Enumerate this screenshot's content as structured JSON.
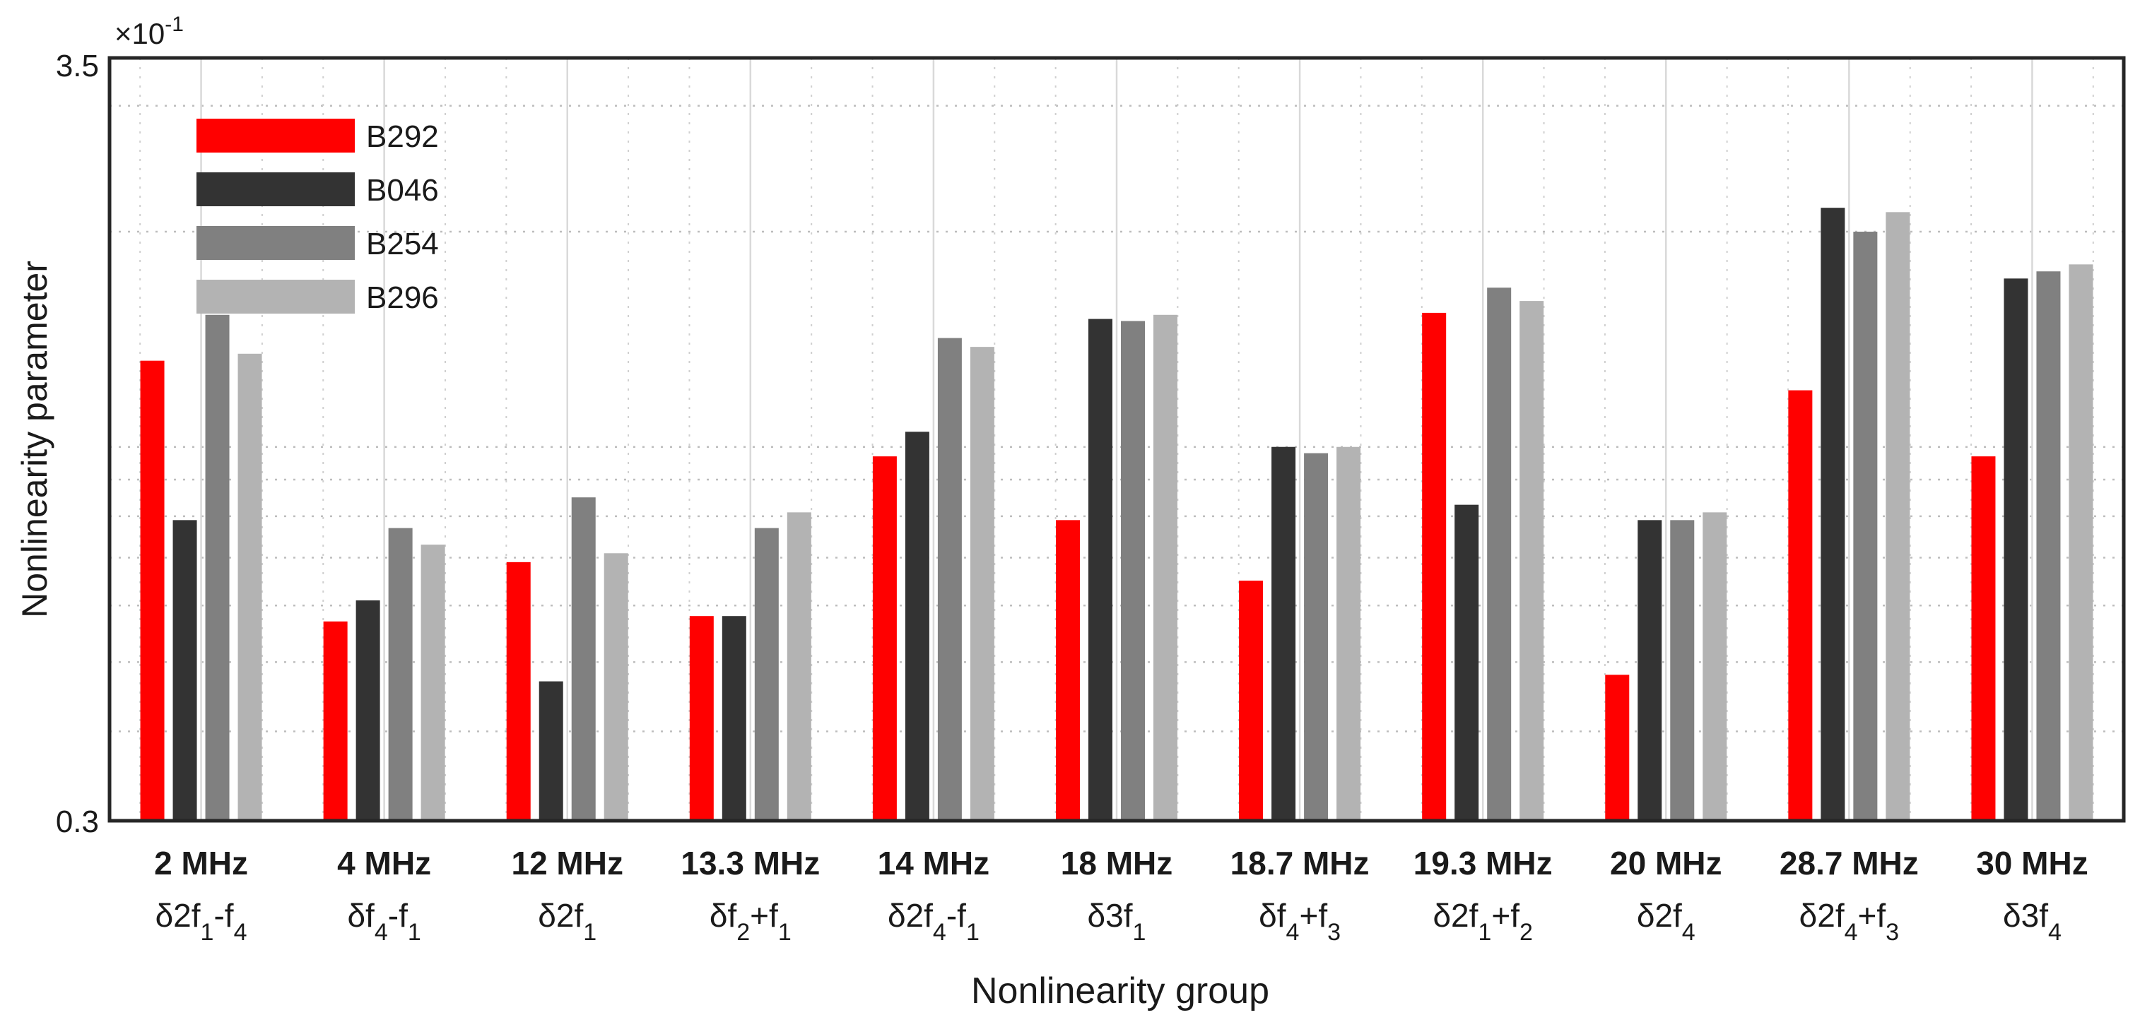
{
  "chart_data": {
    "type": "bar",
    "ylabel": "Nonlinearity parameter",
    "xlabel": "Nonlinearity group",
    "yscale": "log",
    "ylim": [
      0.3,
      3.5
    ],
    "y_ticks": [
      "0.3",
      "3.5"
    ],
    "y_exponent": "×10",
    "y_exponent_power": "-1",
    "grid": true,
    "legend_position": "top-left",
    "categories": [
      "2 MHz",
      "4 MHz",
      "12 MHz",
      "13.3 MHz",
      "14 MHz",
      "18 MHz",
      "18.7 MHz",
      "19.3 MHz",
      "20 MHz",
      "28.7 MHz",
      "30 MHz"
    ],
    "category_sublabels": [
      [
        [
          "δ2f",
          ""
        ],
        [
          "1",
          "sub"
        ],
        [
          "-f",
          ""
        ],
        [
          "4",
          "sub"
        ]
      ],
      [
        [
          "δf",
          ""
        ],
        [
          "4",
          "sub"
        ],
        [
          "-f",
          ""
        ],
        [
          "1",
          "sub"
        ]
      ],
      [
        [
          "δ2f",
          ""
        ],
        [
          "1",
          "sub"
        ]
      ],
      [
        [
          "δf",
          ""
        ],
        [
          "2",
          "sub"
        ],
        [
          "+f",
          ""
        ],
        [
          "1",
          "sub"
        ]
      ],
      [
        [
          "δ2f",
          ""
        ],
        [
          "4",
          "sub"
        ],
        [
          "-f",
          ""
        ],
        [
          "1",
          "sub"
        ]
      ],
      [
        [
          "δ3f",
          ""
        ],
        [
          "1",
          "sub"
        ]
      ],
      [
        [
          "δf",
          ""
        ],
        [
          "4",
          "sub"
        ],
        [
          "+f",
          ""
        ],
        [
          "3",
          "sub"
        ]
      ],
      [
        [
          "δ2f",
          ""
        ],
        [
          "1",
          "sub"
        ],
        [
          "+f",
          ""
        ],
        [
          "2",
          "sub"
        ]
      ],
      [
        [
          "δ2f",
          ""
        ],
        [
          "4",
          "sub"
        ]
      ],
      [
        [
          "δ2f",
          ""
        ],
        [
          "4",
          "sub"
        ],
        [
          "+f",
          ""
        ],
        [
          "3",
          "sub"
        ]
      ],
      [
        [
          "δ3f",
          ""
        ],
        [
          "4",
          "sub"
        ]
      ]
    ],
    "series": [
      {
        "name": "B292",
        "color": "#ff0000",
        "values": [
          1.32,
          0.57,
          0.69,
          0.58,
          0.97,
          0.79,
          0.65,
          1.54,
          0.48,
          1.2,
          0.97
        ]
      },
      {
        "name": "B046",
        "color": "#333333",
        "values": [
          0.79,
          0.61,
          0.47,
          0.58,
          1.05,
          1.51,
          1.0,
          0.83,
          0.79,
          2.16,
          1.72
        ]
      },
      {
        "name": "B254",
        "color": "#808080",
        "values": [
          1.53,
          0.77,
          0.85,
          0.77,
          1.42,
          1.5,
          0.98,
          1.67,
          0.79,
          2.0,
          1.76
        ]
      },
      {
        "name": "B296",
        "color": "#b3b3b3",
        "values": [
          1.35,
          0.73,
          0.71,
          0.81,
          1.38,
          1.53,
          1.0,
          1.6,
          0.81,
          2.13,
          1.8
        ]
      }
    ]
  }
}
